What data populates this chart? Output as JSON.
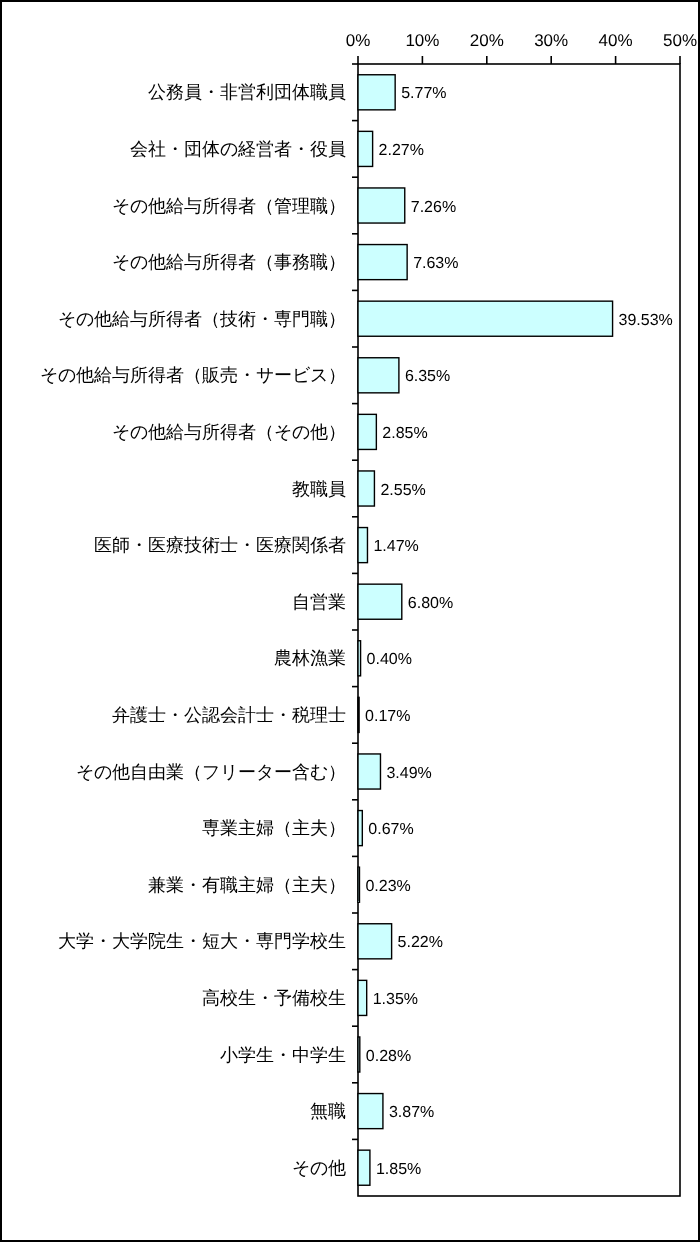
{
  "chart_data": {
    "type": "bar",
    "orientation": "horizontal",
    "categories": [
      "公務員・非営利団体職員",
      "会社・団体の経営者・役員",
      "その他給与所得者（管理職）",
      "その他給与所得者（事務職）",
      "その他給与所得者（技術・専門職）",
      "その他給与所得者（販売・サービス）",
      "その他給与所得者（その他）",
      "教職員",
      "医師・医療技術士・医療関係者",
      "自営業",
      "農林漁業",
      "弁護士・公認会計士・税理士",
      "その他自由業（フリーター含む）",
      "専業主婦（主夫）",
      "兼業・有職主婦（主夫）",
      "大学・大学院生・短大・専門学校生",
      "高校生・予備校生",
      "小学生・中学生",
      "無職",
      "その他"
    ],
    "values": [
      5.77,
      2.27,
      7.26,
      7.63,
      39.53,
      6.35,
      2.85,
      2.55,
      1.47,
      6.8,
      0.4,
      0.17,
      3.49,
      0.67,
      0.23,
      5.22,
      1.35,
      0.28,
      3.87,
      1.85
    ],
    "value_labels": [
      "5.77%",
      "2.27%",
      "7.26%",
      "7.63%",
      "39.53%",
      "6.35%",
      "2.85%",
      "2.55%",
      "1.47%",
      "6.80%",
      "0.40%",
      "0.17%",
      "3.49%",
      "0.67%",
      "0.23%",
      "5.22%",
      "1.35%",
      "0.28%",
      "3.87%",
      "1.85%"
    ],
    "color": "#ccffff",
    "xlim": [
      0,
      50
    ],
    "xticks": [
      {
        "value": 0,
        "label": "0%"
      },
      {
        "value": 10,
        "label": "10%"
      },
      {
        "value": 20,
        "label": "20%"
      },
      {
        "value": 30,
        "label": "30%"
      },
      {
        "value": 40,
        "label": "40%"
      },
      {
        "value": 50,
        "label": "50%"
      }
    ],
    "grid": false
  }
}
